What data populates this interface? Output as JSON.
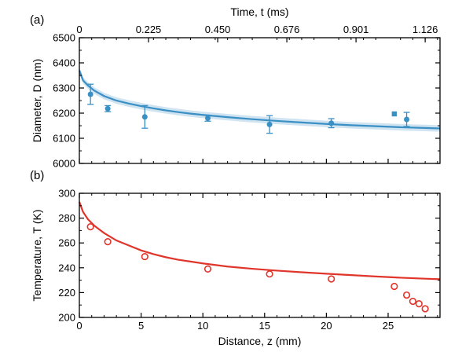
{
  "chart_data": [
    {
      "panel_label": "(a)",
      "type": "scatter",
      "xlabel": "Distance, z (mm)",
      "top_xlabel": "Time, t (ms)",
      "ylabel": "Diameter, D (nm)",
      "xlim": [
        0,
        29.2
      ],
      "ylim": [
        6000,
        6500
      ],
      "x_ticks": [
        0,
        5,
        10,
        15,
        20,
        25
      ],
      "y_ticks": [
        6000,
        6100,
        6200,
        6300,
        6400,
        6500
      ],
      "top_ticks": [
        {
          "z": 0,
          "label": "0"
        },
        {
          "z": 5.6,
          "label": "0.225"
        },
        {
          "z": 11.2,
          "label": "0.450"
        },
        {
          "z": 16.8,
          "label": "0.676"
        },
        {
          "z": 22.4,
          "label": "0.901"
        },
        {
          "z": 28.0,
          "label": "1.126"
        }
      ],
      "series": [
        {
          "kind": "points",
          "color": "#3a8fc4",
          "points": [
            {
              "x": 0.9,
              "y": 6275,
              "err": 40
            },
            {
              "x": 2.3,
              "y": 6218,
              "err": 12
            },
            {
              "x": 5.3,
              "y": 6185,
              "err": 45
            },
            {
              "x": 10.4,
              "y": 6180,
              "err": 12
            },
            {
              "x": 15.4,
              "y": 6155,
              "err": 35
            },
            {
              "x": 20.4,
              "y": 6160,
              "err": 18
            },
            {
              "x": 25.5,
              "y": 6197,
              "err": 0
            },
            {
              "x": 26.5,
              "y": 6175,
              "err": 28
            }
          ]
        },
        {
          "kind": "fit",
          "color": "#3a8fc4",
          "band_color": "#cfe3f1",
          "points": [
            [
              0,
              6370
            ],
            [
              0.3,
              6330
            ],
            [
              0.7,
              6310
            ],
            [
              1.2,
              6290
            ],
            [
              2,
              6268
            ],
            [
              3,
              6250
            ],
            [
              4,
              6238
            ],
            [
              5,
              6228
            ],
            [
              6,
              6219
            ],
            [
              7,
              6211
            ],
            [
              8,
              6204
            ],
            [
              9,
              6198
            ],
            [
              10,
              6193
            ],
            [
              12,
              6184
            ],
            [
              14,
              6176
            ],
            [
              16,
              6169
            ],
            [
              18,
              6163
            ],
            [
              20,
              6157
            ],
            [
              22,
              6152
            ],
            [
              24,
              6148
            ],
            [
              26,
              6144
            ],
            [
              28,
              6141
            ],
            [
              29.2,
              6139
            ]
          ],
          "band_halfwidth": 13
        }
      ]
    },
    {
      "panel_label": "(b)",
      "type": "scatter",
      "xlabel": "Distance, z (mm)",
      "ylabel": "Temperature, T (K)",
      "xlim": [
        0,
        29.2
      ],
      "ylim": [
        200,
        300
      ],
      "x_ticks": [
        0,
        5,
        10,
        15,
        20,
        25
      ],
      "y_ticks": [
        200,
        220,
        240,
        260,
        280,
        300
      ],
      "series": [
        {
          "kind": "points",
          "color": "#e0352b",
          "points": [
            {
              "x": 0.9,
              "y": 273
            },
            {
              "x": 2.3,
              "y": 261
            },
            {
              "x": 5.3,
              "y": 249
            },
            {
              "x": 10.4,
              "y": 239
            },
            {
              "x": 15.4,
              "y": 235
            },
            {
              "x": 20.4,
              "y": 231
            },
            {
              "x": 25.5,
              "y": 225
            },
            {
              "x": 26.5,
              "y": 218
            },
            {
              "x": 27.0,
              "y": 213
            },
            {
              "x": 27.5,
              "y": 211
            },
            {
              "x": 28.0,
              "y": 207
            }
          ]
        },
        {
          "kind": "fit",
          "color": "#e0352b",
          "points": [
            [
              0,
              293
            ],
            [
              0.3,
              285
            ],
            [
              0.7,
              279
            ],
            [
              1.2,
              274
            ],
            [
              2,
              268
            ],
            [
              3,
              262
            ],
            [
              4,
              258
            ],
            [
              5,
              254
            ],
            [
              6,
              251
            ],
            [
              7,
              248.5
            ],
            [
              8,
              246.5
            ],
            [
              9,
              245
            ],
            [
              10,
              243.5
            ],
            [
              12,
              241
            ],
            [
              14,
              239.2
            ],
            [
              16,
              237.7
            ],
            [
              18,
              236.4
            ],
            [
              20,
              235.2
            ],
            [
              22,
              234.1
            ],
            [
              24,
              233
            ],
            [
              26,
              232
            ],
            [
              28,
              231.2
            ],
            [
              29.2,
              230.8
            ]
          ]
        }
      ]
    }
  ]
}
